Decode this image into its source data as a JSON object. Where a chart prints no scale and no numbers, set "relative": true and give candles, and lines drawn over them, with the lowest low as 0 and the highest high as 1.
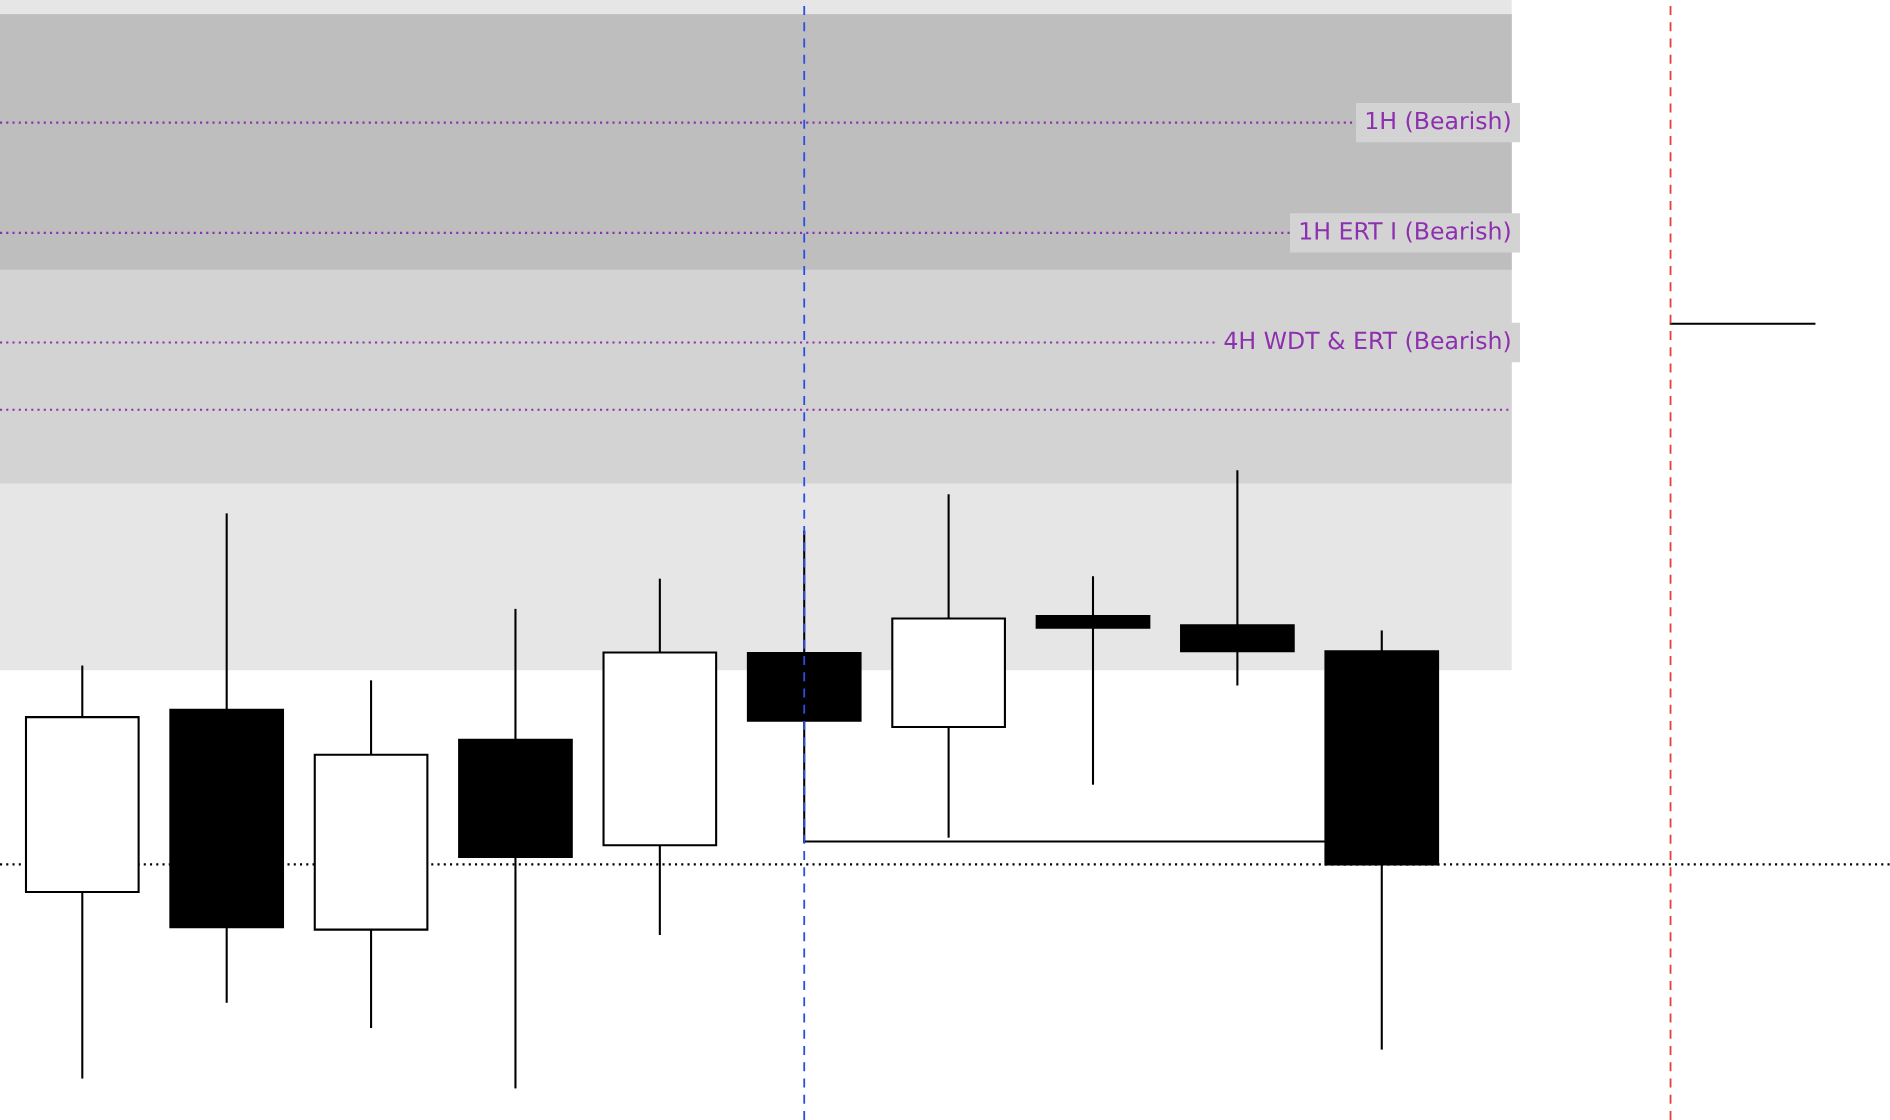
{
  "chart_data": {
    "type": "candlestick",
    "relative": true,
    "categories": [
      null,
      null,
      null,
      null,
      null,
      null,
      null,
      null,
      null,
      null
    ],
    "ohlc": [
      [
        0.317,
        0.683,
        0.016,
        0.601
      ],
      [
        0.613,
        0.93,
        0.139,
        0.26
      ],
      [
        0.256,
        0.659,
        0.098,
        0.54
      ],
      [
        0.564,
        0.775,
        0.0,
        0.374
      ],
      [
        0.393,
        0.824,
        0.249,
        0.706
      ],
      [
        0.705,
        0.902,
        0.399,
        0.595
      ],
      [
        0.585,
        0.961,
        0.407,
        0.761
      ],
      [
        0.765,
        0.828,
        0.493,
        0.746
      ],
      [
        0.75,
        1.0,
        0.654,
        0.708
      ],
      [
        0.708,
        0.74,
        0.063,
        0.362
      ]
    ],
    "bands": [
      {
        "axis": "y",
        "from": 0.677,
        "to": 1.765,
        "color": "#e6e6e6"
      },
      {
        "axis": "y",
        "from": 0.98,
        "to": 1.742,
        "color": "#d3d3d3"
      },
      {
        "axis": "y",
        "from": 1.327,
        "to": 1.742,
        "color": "#bebebe"
      }
    ],
    "ref_lines": [
      {
        "axis": "y",
        "value": 0.362,
        "color": "#000000",
        "line_style": "dotted"
      },
      {
        "axis": "y",
        "value": 1.566,
        "label": "1H (Bearish)",
        "color": "#8e2fb0",
        "line_style": "dotted"
      },
      {
        "axis": "y",
        "value": 1.387,
        "label": "1H ERT I (Bearish)",
        "color": "#8e2fb0",
        "line_style": "dotted"
      },
      {
        "axis": "y",
        "value": 1.209,
        "label": "4H WDT & ERT (Bearish)",
        "color": "#8e2fb0",
        "line_style": "dotted"
      },
      {
        "axis": "y",
        "value": 1.1,
        "color": "#8e2fb0",
        "line_style": "dotted"
      }
    ]
  }
}
